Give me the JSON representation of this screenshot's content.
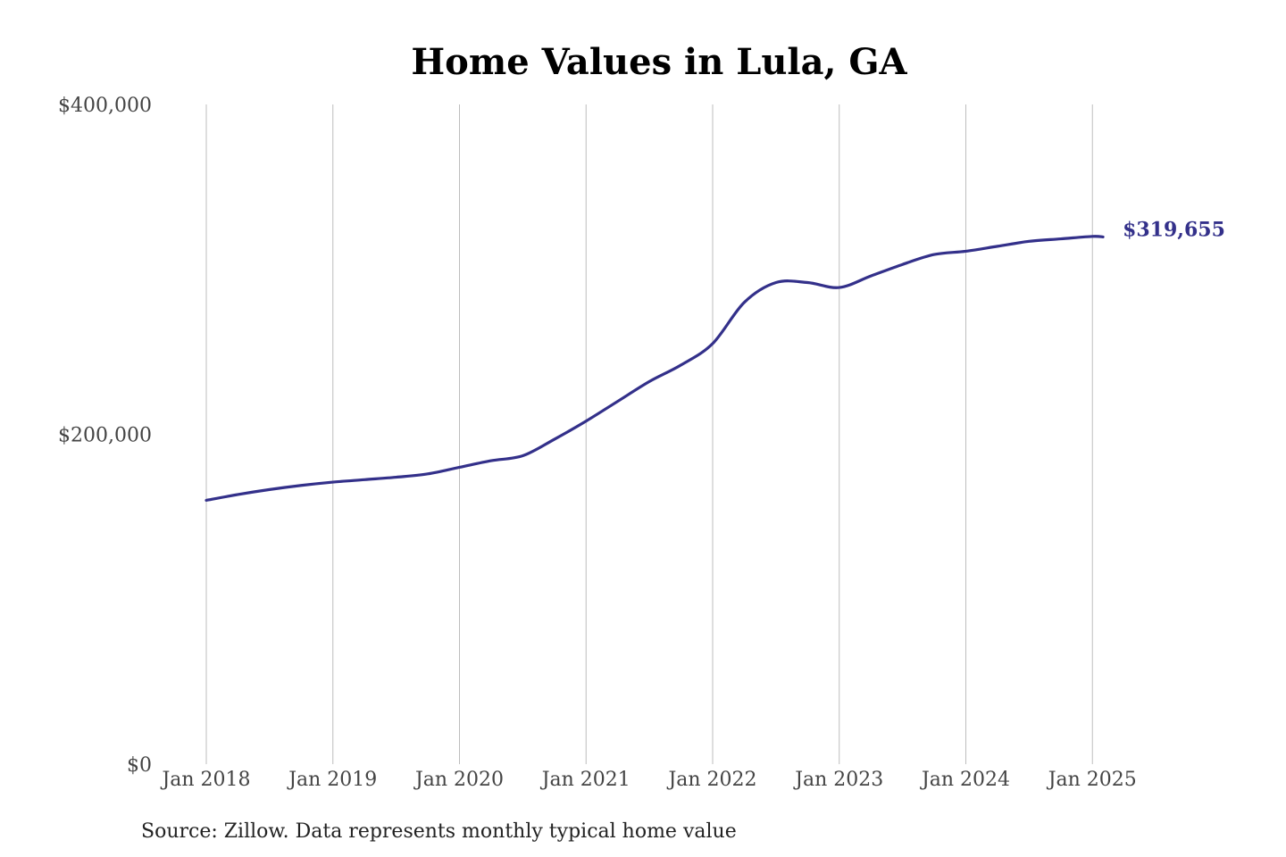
{
  "chart_data": {
    "type": "line",
    "title": "Home Values in Lula, GA",
    "source": "Source: Zillow. Data represents monthly typical home value",
    "xlabel": "",
    "ylabel": "",
    "ylim": [
      0,
      400000
    ],
    "yticks": [
      {
        "value": 0,
        "label": "$0"
      },
      {
        "value": 200000,
        "label": "$200,000"
      },
      {
        "value": 400000,
        "label": "$400,000"
      }
    ],
    "xticks": [
      {
        "value": "2018-01",
        "label": "Jan 2018"
      },
      {
        "value": "2019-01",
        "label": "Jan 2019"
      },
      {
        "value": "2020-01",
        "label": "Jan 2020"
      },
      {
        "value": "2021-01",
        "label": "Jan 2021"
      },
      {
        "value": "2022-01",
        "label": "Jan 2022"
      },
      {
        "value": "2023-01",
        "label": "Jan 2023"
      },
      {
        "value": "2024-01",
        "label": "Jan 2024"
      },
      {
        "value": "2025-01",
        "label": "Jan 2025"
      }
    ],
    "grid": "vertical",
    "line_color": "#33308a",
    "end_label": "$319,655",
    "series": [
      {
        "name": "",
        "x": [
          "2018-01",
          "2018-04",
          "2018-07",
          "2018-10",
          "2019-01",
          "2019-04",
          "2019-07",
          "2019-10",
          "2020-01",
          "2020-04",
          "2020-07",
          "2020-10",
          "2021-01",
          "2021-04",
          "2021-07",
          "2021-10",
          "2022-01",
          "2022-04",
          "2022-07",
          "2022-10",
          "2023-01",
          "2023-04",
          "2023-07",
          "2023-10",
          "2024-01",
          "2024-04",
          "2024-07",
          "2024-10",
          "2025-01",
          "2025-02"
        ],
        "y": [
          160000,
          163500,
          166500,
          169000,
          171000,
          172500,
          174000,
          176000,
          180000,
          184000,
          187000,
          197000,
          208000,
          220000,
          232000,
          242000,
          255000,
          280000,
          292000,
          292000,
          289000,
          296000,
          303000,
          309000,
          311000,
          314000,
          317000,
          318500,
          320000,
          319655
        ]
      }
    ]
  }
}
